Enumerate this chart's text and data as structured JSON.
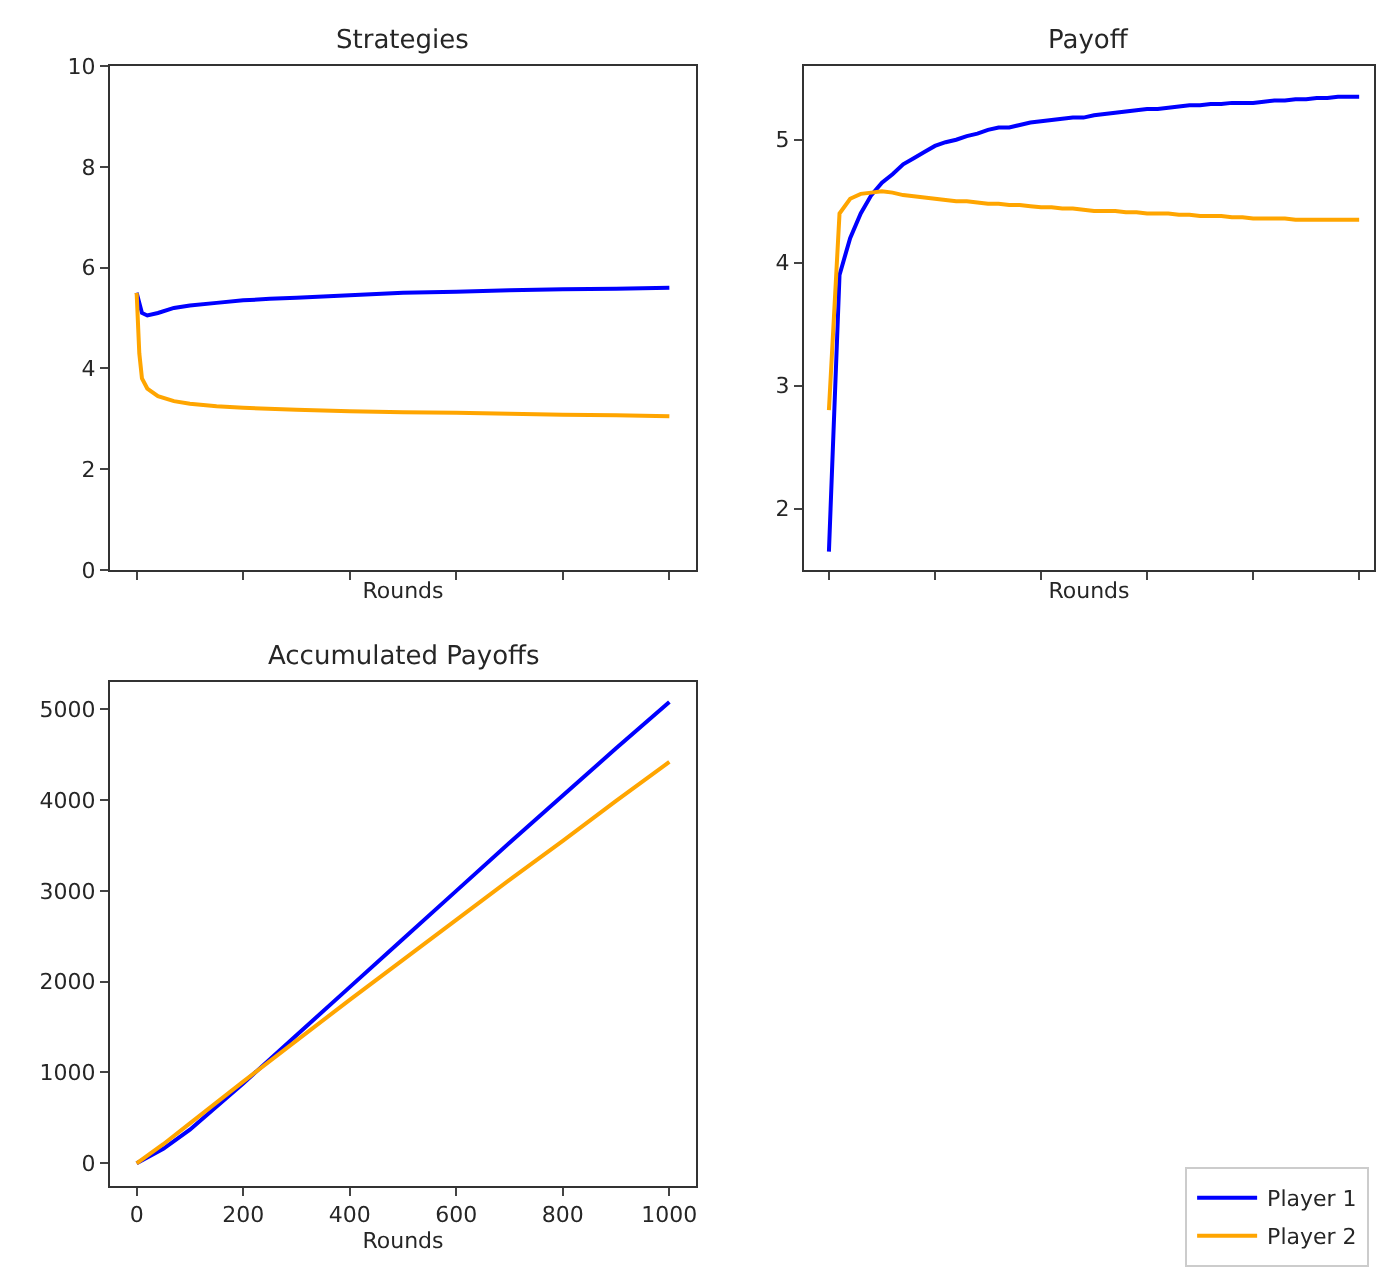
{
  "chart_data": [
    {
      "type": "line",
      "title": "Strategies",
      "xlabel": "Rounds",
      "xlim": [
        -50,
        1050
      ],
      "xticks": [
        {
          "value": 0,
          "label": null
        },
        {
          "value": 200,
          "label": null
        },
        {
          "value": 400,
          "label": null
        },
        {
          "value": 600,
          "label": null
        },
        {
          "value": 800,
          "label": null
        },
        {
          "value": 1000,
          "label": null
        }
      ],
      "ylim": [
        0,
        10
      ],
      "yticks": [
        0,
        2,
        4,
        6,
        8,
        10
      ],
      "tick_labels": "y",
      "series": [
        {
          "color": "#0000ff",
          "x": [
            0,
            10,
            20,
            40,
            70,
            100,
            150,
            200,
            250,
            300,
            400,
            500,
            600,
            700,
            800,
            900,
            1000
          ],
          "values": [
            5.5,
            5.1,
            5.05,
            5.1,
            5.2,
            5.25,
            5.3,
            5.35,
            5.38,
            5.4,
            5.45,
            5.5,
            5.52,
            5.55,
            5.57,
            5.58,
            5.6
          ]
        },
        {
          "color": "#ffa500",
          "x": [
            0,
            5,
            10,
            20,
            40,
            70,
            100,
            150,
            200,
            300,
            400,
            500,
            600,
            700,
            800,
            900,
            1000
          ],
          "values": [
            5.5,
            4.3,
            3.8,
            3.6,
            3.45,
            3.35,
            3.3,
            3.25,
            3.22,
            3.18,
            3.15,
            3.13,
            3.12,
            3.1,
            3.08,
            3.07,
            3.05
          ]
        }
      ]
    },
    {
      "type": "line",
      "title": "Payoff",
      "xlabel": "Rounds",
      "categories": [
        null,
        null,
        null,
        null,
        null,
        null,
        null,
        null,
        null,
        null,
        null,
        null,
        null,
        null,
        null,
        null,
        null,
        null,
        null,
        null,
        null,
        null,
        null,
        null,
        null,
        null,
        null,
        null,
        null,
        null,
        null,
        null,
        null,
        null,
        null,
        null,
        null,
        null,
        null,
        null,
        null,
        null,
        null,
        null,
        null,
        null,
        null,
        null,
        null,
        null,
        null
      ],
      "ylim": [
        1.5,
        5.6
      ],
      "yticks": [
        2,
        3,
        4,
        5
      ],
      "tick_labels": "y",
      "series": [
        {
          "color": "#0000ff",
          "values": [
            1.65,
            3.9,
            4.2,
            4.4,
            4.55,
            4.65,
            4.72,
            4.8,
            4.85,
            4.9,
            4.95,
            4.98,
            5.0,
            5.03,
            5.05,
            5.08,
            5.1,
            5.1,
            5.12,
            5.14,
            5.15,
            5.16,
            5.17,
            5.18,
            5.18,
            5.2,
            5.21,
            5.22,
            5.23,
            5.24,
            5.25,
            5.25,
            5.26,
            5.27,
            5.28,
            5.28,
            5.29,
            5.29,
            5.3,
            5.3,
            5.3,
            5.31,
            5.32,
            5.32,
            5.33,
            5.33,
            5.34,
            5.34,
            5.35,
            5.35,
            5.35
          ]
        },
        {
          "color": "#ffa500",
          "values": [
            2.8,
            4.4,
            4.52,
            4.56,
            4.57,
            4.58,
            4.57,
            4.55,
            4.54,
            4.53,
            4.52,
            4.51,
            4.5,
            4.5,
            4.49,
            4.48,
            4.48,
            4.47,
            4.47,
            4.46,
            4.45,
            4.45,
            4.44,
            4.44,
            4.43,
            4.42,
            4.42,
            4.42,
            4.41,
            4.41,
            4.4,
            4.4,
            4.4,
            4.39,
            4.39,
            4.38,
            4.38,
            4.38,
            4.37,
            4.37,
            4.36,
            4.36,
            4.36,
            4.36,
            4.35,
            4.35,
            4.35,
            4.35,
            4.35,
            4.35,
            4.35
          ]
        }
      ]
    },
    {
      "type": "line",
      "title": "Accumulated Payoffs",
      "xlabel": "Rounds",
      "xlim": [
        -50,
        1050
      ],
      "xticks": [
        0,
        200,
        400,
        600,
        800,
        1000
      ],
      "ylim": [
        -250,
        5300
      ],
      "yticks": [
        0,
        1000,
        2000,
        3000,
        4000,
        5000
      ],
      "legend": "bottom right",
      "series": [
        {
          "name": "Player 1",
          "color": "#0000ff",
          "x": [
            0,
            50,
            100,
            200,
            300,
            400,
            500,
            600,
            700,
            800,
            900,
            1000
          ],
          "values": [
            0,
            160,
            370,
            880,
            1410,
            1940,
            2470,
            3000,
            3530,
            4050,
            4570,
            5080
          ]
        },
        {
          "name": "Player 2",
          "color": "#ffa500",
          "x": [
            0,
            50,
            100,
            200,
            300,
            400,
            500,
            600,
            700,
            800,
            900,
            1000
          ],
          "values": [
            0,
            210,
            440,
            900,
            1350,
            1800,
            2240,
            2680,
            3120,
            3550,
            3990,
            4420
          ]
        }
      ]
    }
  ]
}
